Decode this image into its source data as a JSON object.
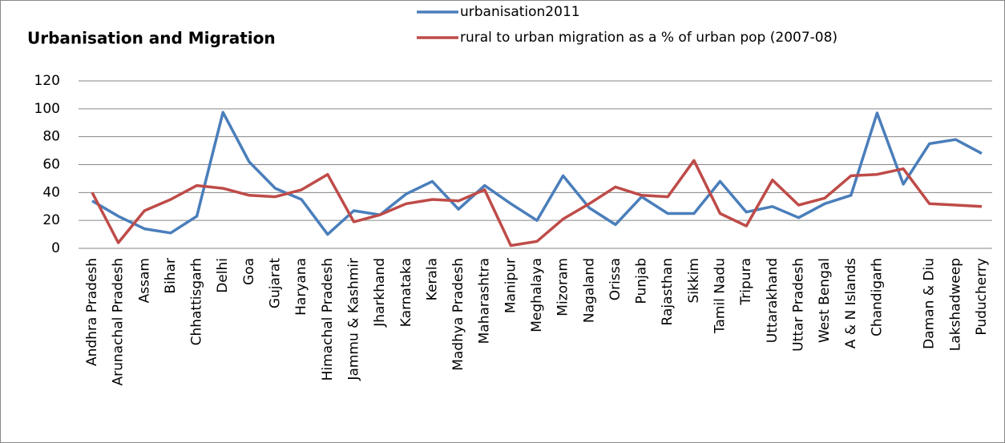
{
  "chart_data": {
    "type": "line",
    "title": "Urbanisation and Migration",
    "categories": [
      "Andhra Pradesh",
      "Arunachal Pradesh",
      "Assam",
      "Bihar",
      "Chhattisgarh",
      "Delhi",
      "Goa",
      "Gujarat",
      "Haryana",
      "Himachal Pradesh",
      "Jammu & Kashmir",
      "Jharkhand",
      "Karnataka",
      "Kerala",
      "Madhya Pradesh",
      "Maharashtra",
      "Manipur",
      "Meghalaya",
      "Mizoram",
      "Nagaland",
      "Orissa",
      "Punjab",
      "Rajasthan",
      "Sikkim",
      "Tamil Nadu",
      "Tripura",
      "Uttarakhand",
      "Uttar Pradesh",
      "West Bengal",
      "A & N Islands",
      "Chandigarh",
      null,
      "Daman & Diu",
      "Lakshadweep",
      "Puducherry"
    ],
    "series": [
      {
        "name": "urbanisation2011",
        "color": "#4a7ebb",
        "values": [
          34,
          23,
          14,
          11,
          23,
          97.5,
          62,
          43,
          35,
          10,
          27,
          24,
          39,
          48,
          28,
          45,
          32,
          20,
          52,
          29,
          17,
          37,
          25,
          25,
          48,
          26,
          30,
          22,
          32,
          38,
          97,
          46,
          75,
          78,
          68
        ]
      },
      {
        "name": "rural to urban migration as a % of urban pop (2007-08)",
        "color": "#be4b48",
        "values": [
          40,
          4,
          27,
          35,
          45,
          43,
          38,
          37,
          42,
          53,
          19,
          24,
          32,
          35,
          34,
          42,
          2,
          5,
          21,
          32,
          44,
          38,
          37,
          63,
          25,
          16,
          49,
          31,
          36,
          52,
          53,
          57,
          32,
          31,
          30
        ]
      }
    ],
    "ylim": [
      0,
      120
    ],
    "yticks": [
      0,
      20,
      40,
      60,
      80,
      100,
      120
    ],
    "grid": true
  }
}
